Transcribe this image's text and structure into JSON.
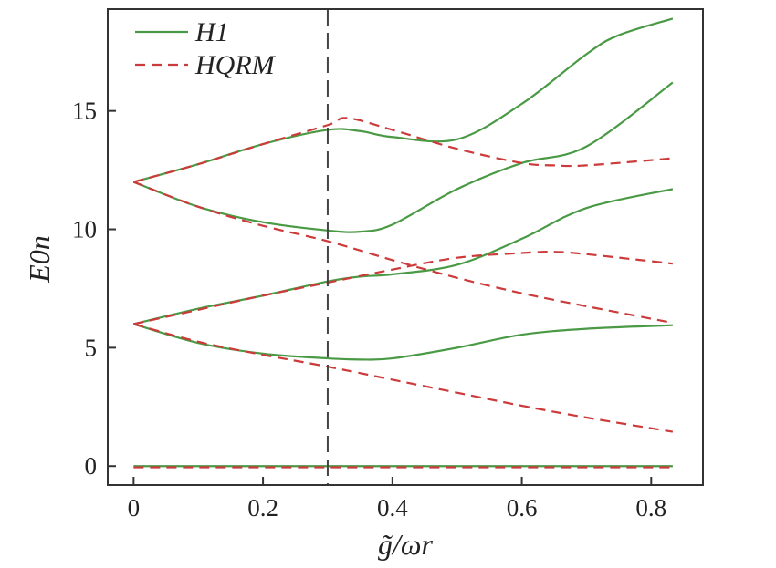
{
  "chart_data": {
    "type": "line",
    "xlabel": "g̃/ωr",
    "ylabel": "E0n",
    "xlim": [
      -0.04,
      0.88
    ],
    "ylim": [
      -0.8,
      19.3
    ],
    "xticks": [
      0,
      0.2,
      0.4,
      0.6,
      0.8
    ],
    "xtick_labels": [
      "0",
      "0.2",
      "0.4",
      "0.6",
      "0.8"
    ],
    "yticks": [
      0,
      5,
      10,
      15
    ],
    "ytick_labels": [
      "0",
      "5",
      "10",
      "15"
    ],
    "vline_x": 0.3,
    "grid": false,
    "legend_position": "top-left",
    "legend": [
      {
        "name": "H1",
        "style": "solid",
        "color": "#4a9a45"
      },
      {
        "name": "HQRM",
        "style": "dashed",
        "color": "#cc3b3b"
      }
    ],
    "series": [
      {
        "name": "H1",
        "style": "solid",
        "color": "#4a9a45",
        "x": [
          0,
          0.8333
        ],
        "y": [
          0.0,
          0.0
        ]
      },
      {
        "name": "H1",
        "style": "solid",
        "color": "#4a9a45",
        "x": [
          0,
          0.1,
          0.2,
          0.3,
          0.35,
          0.4,
          0.5,
          0.6,
          0.7,
          0.8333
        ],
        "y": [
          6.0,
          5.2,
          4.75,
          4.55,
          4.5,
          4.55,
          5.0,
          5.55,
          5.8,
          5.95
        ]
      },
      {
        "name": "H1",
        "style": "solid",
        "color": "#4a9a45",
        "x": [
          0,
          0.1,
          0.2,
          0.3,
          0.35,
          0.4,
          0.5,
          0.6,
          0.7,
          0.8333
        ],
        "y": [
          6.0,
          6.65,
          7.2,
          7.8,
          8.0,
          8.1,
          8.5,
          9.6,
          10.9,
          11.7
        ]
      },
      {
        "name": "H1",
        "style": "solid",
        "color": "#4a9a45",
        "x": [
          0,
          0.1,
          0.2,
          0.3,
          0.35,
          0.4,
          0.5,
          0.6,
          0.7,
          0.8333
        ],
        "y": [
          12.0,
          10.95,
          10.3,
          9.95,
          9.9,
          10.2,
          11.7,
          12.8,
          13.5,
          16.2
        ]
      },
      {
        "name": "H1",
        "style": "solid",
        "color": "#4a9a45",
        "x": [
          0,
          0.1,
          0.2,
          0.3,
          0.35,
          0.4,
          0.5,
          0.6,
          0.7,
          0.75,
          0.8333
        ],
        "y": [
          12.0,
          12.75,
          13.6,
          14.2,
          14.15,
          13.9,
          13.8,
          15.3,
          17.4,
          18.2,
          18.9
        ]
      },
      {
        "name": "HQRM",
        "style": "dashed",
        "color": "#cc3b3b",
        "x": [
          0,
          0.8333
        ],
        "y": [
          -0.05,
          -0.05
        ]
      },
      {
        "name": "HQRM",
        "style": "dashed",
        "color": "#cc3b3b",
        "x": [
          0,
          0.1,
          0.2,
          0.3,
          0.4,
          0.5,
          0.6,
          0.7,
          0.8333
        ],
        "y": [
          6.0,
          5.25,
          4.7,
          4.2,
          3.65,
          3.1,
          2.55,
          2.05,
          1.45
        ]
      },
      {
        "name": "HQRM",
        "style": "dashed",
        "color": "#cc3b3b",
        "x": [
          0,
          0.1,
          0.2,
          0.3,
          0.4,
          0.5,
          0.6,
          0.65,
          0.7,
          0.8333
        ],
        "y": [
          6.0,
          6.6,
          7.2,
          7.75,
          8.3,
          8.8,
          9.0,
          9.05,
          8.95,
          8.55
        ]
      },
      {
        "name": "HQRM",
        "style": "dashed",
        "color": "#cc3b3b",
        "x": [
          0,
          0.1,
          0.2,
          0.3,
          0.4,
          0.5,
          0.6,
          0.7,
          0.8333
        ],
        "y": [
          12.0,
          10.95,
          10.15,
          9.5,
          8.7,
          7.95,
          7.3,
          6.75,
          6.05
        ]
      },
      {
        "name": "HQRM",
        "style": "dashed",
        "color": "#cc3b3b",
        "x": [
          0,
          0.1,
          0.2,
          0.3,
          0.33,
          0.4,
          0.5,
          0.6,
          0.65,
          0.7,
          0.8333
        ],
        "y": [
          12.0,
          12.75,
          13.6,
          14.4,
          14.7,
          14.2,
          13.4,
          12.8,
          12.7,
          12.7,
          13.0
        ]
      }
    ]
  }
}
